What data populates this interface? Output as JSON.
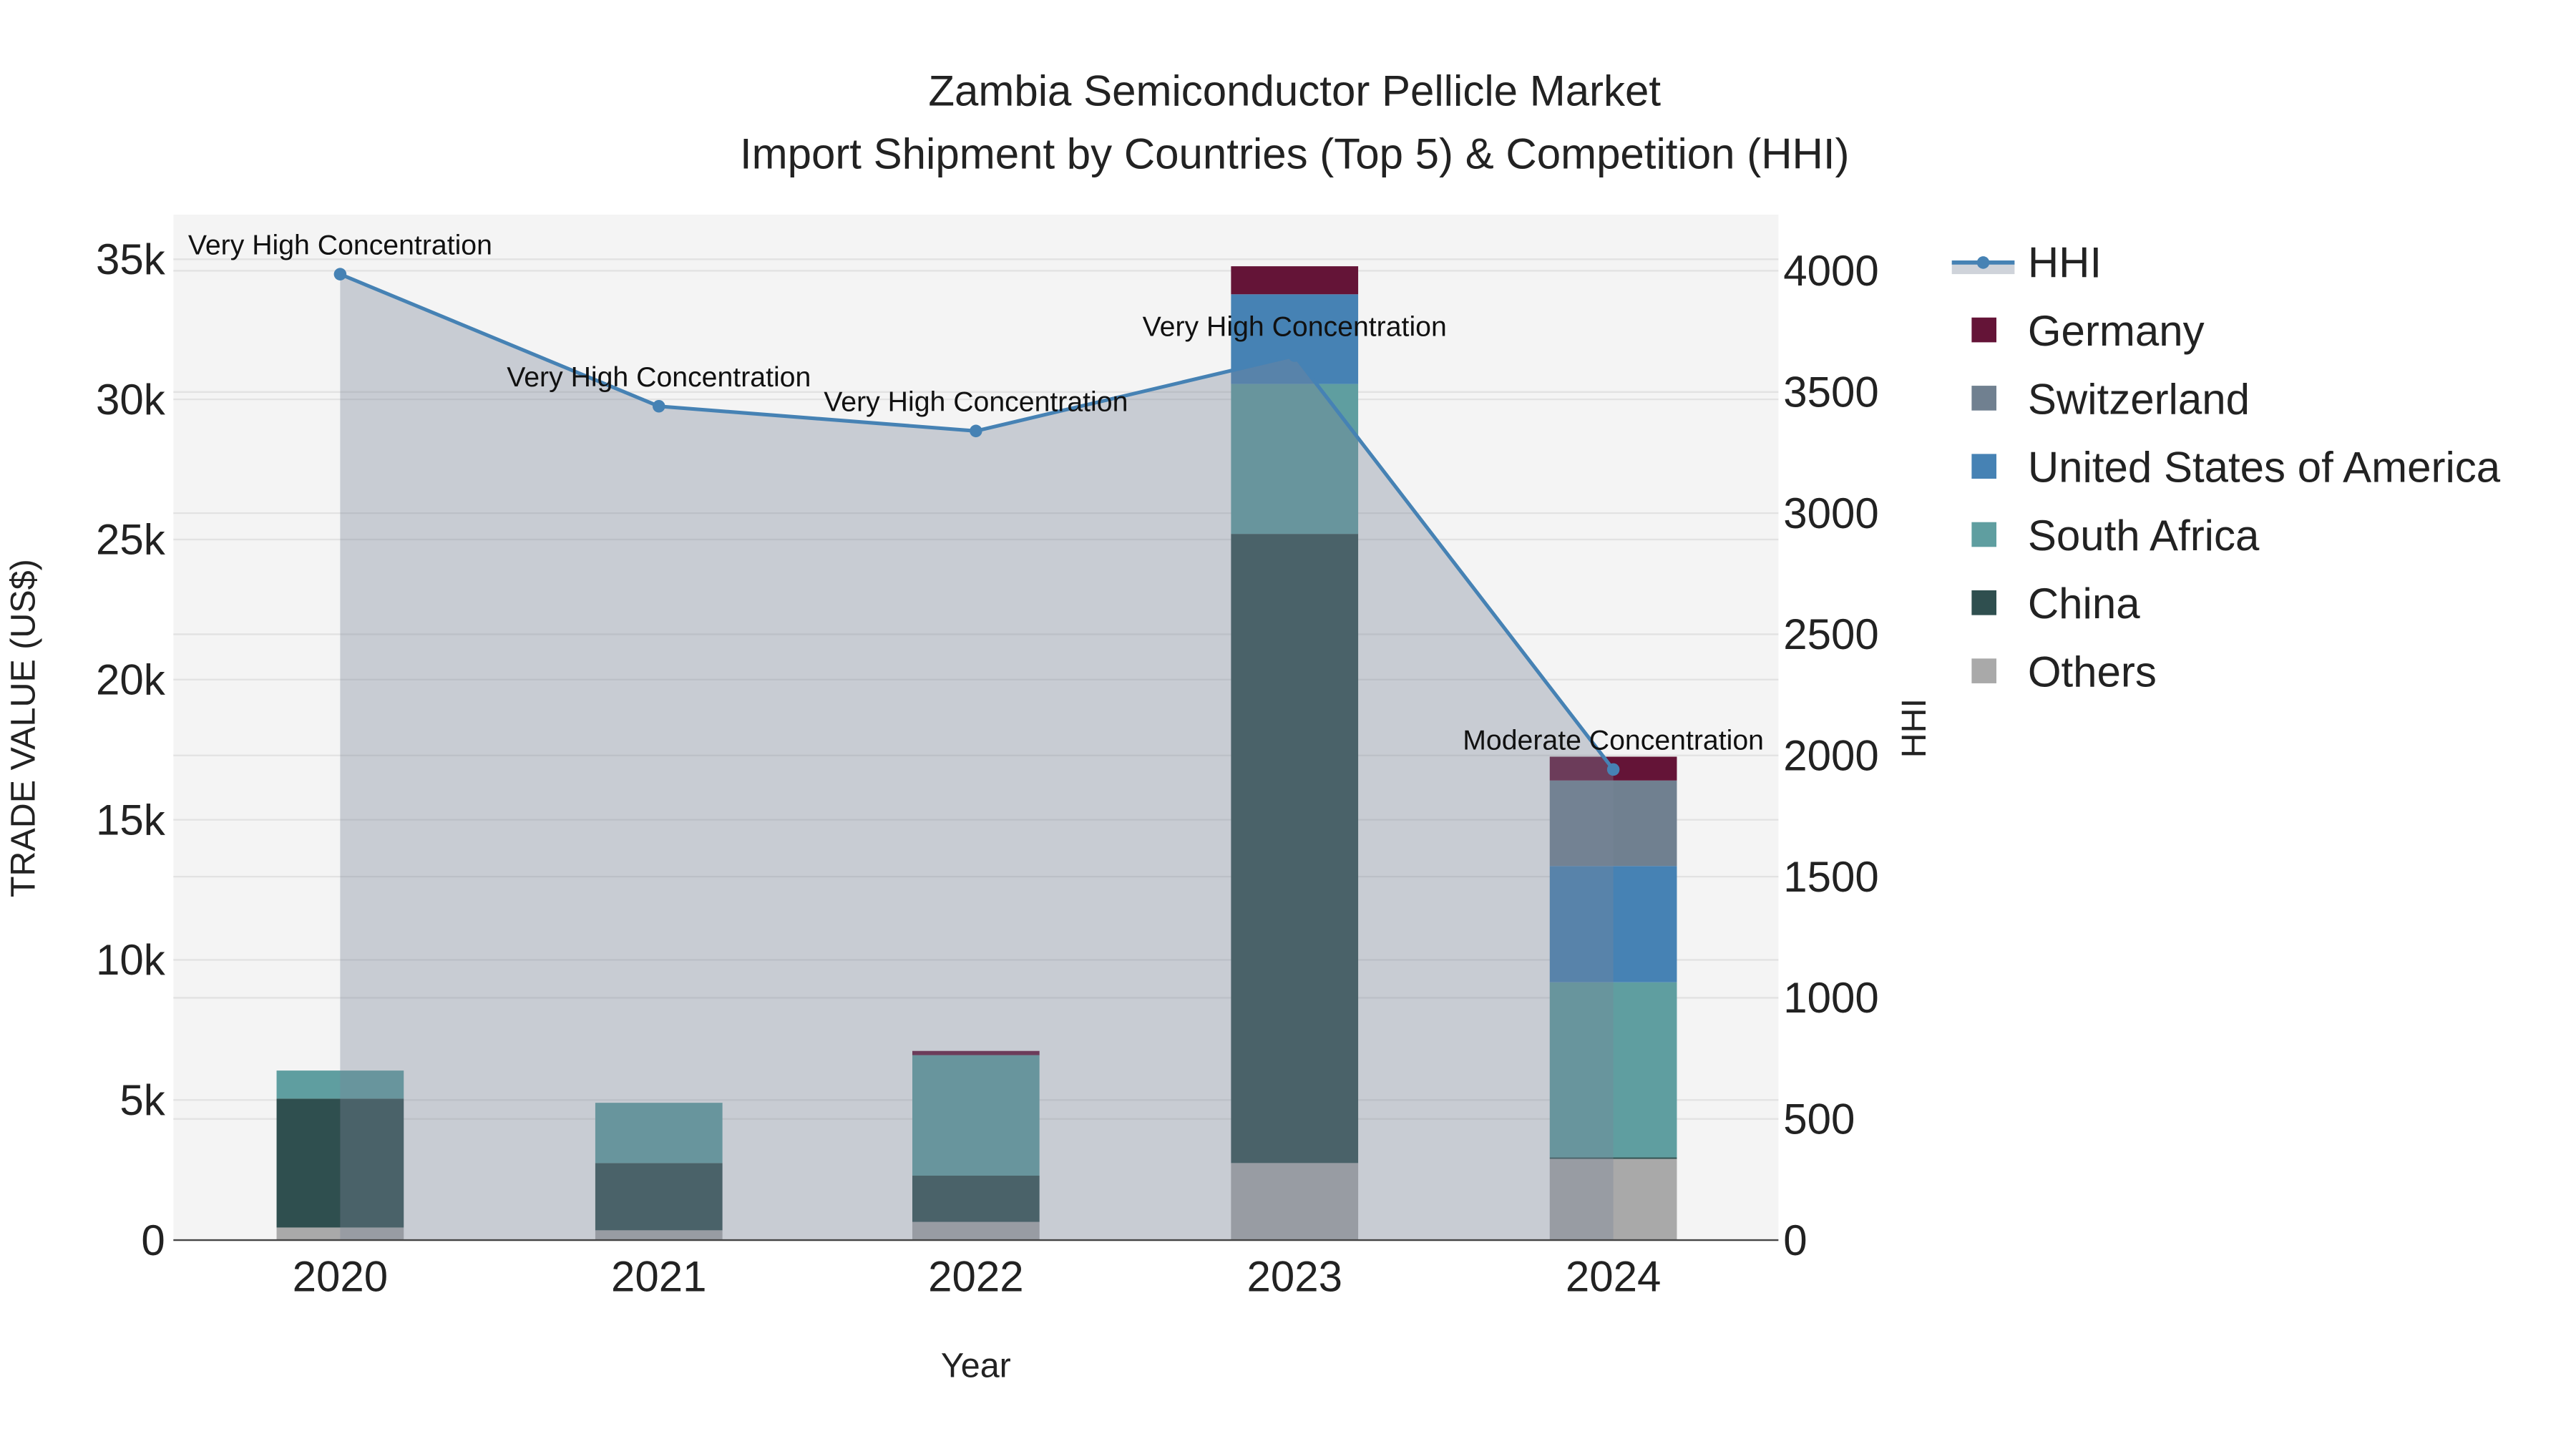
{
  "chart_data": {
    "type": "bar",
    "title_line1": "Zambia Semiconductor Pellicle Market",
    "title_line2": "Import Shipment by Countries (Top 5) & Competition (HHI)",
    "xlabel": "Year",
    "ylabel": "TRADE VALUE (US$)",
    "y2label": "HHI",
    "categories": [
      "2020",
      "2021",
      "2022",
      "2023",
      "2024"
    ],
    "ylim": [
      0,
      36500
    ],
    "y2lim": [
      0,
      4200
    ],
    "yticks": [
      0,
      5000,
      10000,
      15000,
      20000,
      25000,
      30000,
      35000
    ],
    "ytick_labels": [
      "0",
      "5k",
      "10k",
      "15k",
      "20k",
      "25k",
      "30k",
      "35k"
    ],
    "y2ticks": [
      0,
      500,
      1000,
      1500,
      2000,
      2500,
      3000,
      3500,
      4000
    ],
    "y2tick_labels": [
      "0",
      "500",
      "1000",
      "1500",
      "2000",
      "2500",
      "3000",
      "3500",
      "4000"
    ],
    "series": [
      {
        "name": "Others",
        "color": "#A9A9A9",
        "values": [
          450,
          350,
          650,
          2750,
          2900
        ]
      },
      {
        "name": "China",
        "color": "#2F4F4F",
        "values": [
          4600,
          2400,
          1650,
          22450,
          50
        ]
      },
      {
        "name": "South Africa",
        "color": "#5F9EA0",
        "values": [
          1000,
          2150,
          4300,
          5350,
          6250
        ]
      },
      {
        "name": "United States of America",
        "color": "#4682B4",
        "values": [
          0,
          0,
          0,
          3200,
          4150
        ]
      },
      {
        "name": "Switzerland",
        "color": "#708090",
        "values": [
          0,
          0,
          0,
          0,
          3050
        ]
      },
      {
        "name": "Germany",
        "color": "#641437",
        "values": [
          0,
          0,
          150,
          1000,
          850
        ]
      }
    ],
    "hhi": {
      "name": "HHI",
      "color": "#4682B4",
      "values": [
        3986,
        3441,
        3339,
        3650,
        1942
      ],
      "annotations": [
        "Very High Concentration",
        "Very High Concentration",
        "Very High Concentration",
        "Very High Concentration",
        "Moderate Concentration"
      ]
    },
    "legend": [
      "HHI",
      "Germany",
      "Switzerland",
      "United States of America",
      "South Africa",
      "China",
      "Others"
    ],
    "legend_position": "right",
    "grid": true
  }
}
